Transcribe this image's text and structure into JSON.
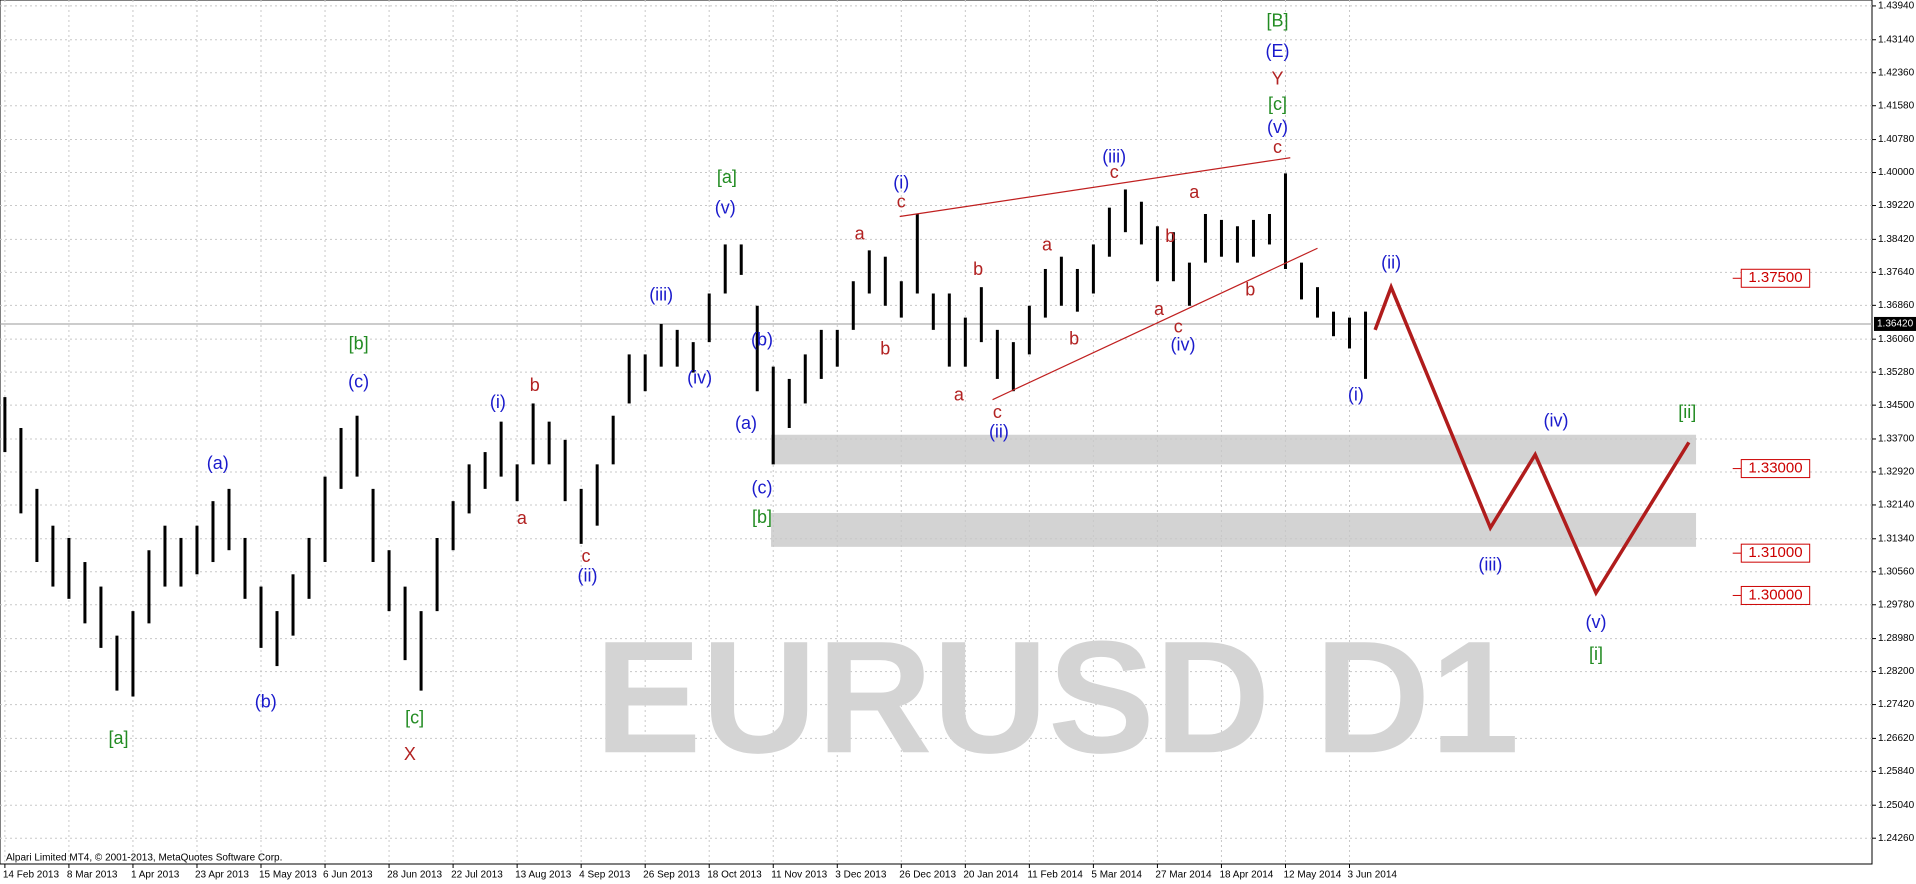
{
  "chart_data": {
    "type": "candlestick",
    "watermark": "EURUSD D1",
    "copyright": "Alpari Limited MT4, © 2001-2013, MetaQuotes Software Corp.",
    "categories": [
      "14 Feb 2013",
      "8 Mar 2013",
      "1 Apr 2013",
      "23 Apr 2013",
      "15 May 2013",
      "6 Jun 2013",
      "28 Jun 2013",
      "22 Jul 2013",
      "13 Aug 2013",
      "4 Sep 2013",
      "26 Sep 2013",
      "18 Oct 2013",
      "11 Nov 2013",
      "3 Dec 2013",
      "26 Dec 2013",
      "20 Jan 2014",
      "11 Feb 2014",
      "5 Mar 2014",
      "27 Mar 2014",
      "18 Apr 2014",
      "12 May 2014",
      "3 Jun 2014"
    ],
    "low": [
      1.3339,
      1.3194,
      1.3079,
      1.3021,
      1.2992,
      1.2934,
      1.2876,
      1.2775,
      1.2761,
      1.2934,
      1.3021,
      1.3021,
      1.305,
      1.3079,
      1.3107,
      1.2992,
      1.2876,
      1.2833,
      1.2905,
      1.2992,
      1.3079,
      1.3252,
      1.3281,
      1.3079,
      1.2963,
      1.2847,
      1.2775,
      1.2963,
      1.3107,
      1.3194,
      1.3252,
      1.3281,
      1.3223,
      1.331,
      1.331,
      1.3223,
      1.3122,
      1.3165,
      1.331,
      1.3454,
      1.3483,
      1.3541,
      1.3541,
      1.3527,
      1.3599,
      1.3714,
      1.3758,
      1.3483,
      1.331,
      1.3396,
      1.3454,
      1.3512,
      1.3541,
      1.3628,
      1.3714,
      1.3685,
      1.3657,
      1.3714,
      1.3628,
      1.3541,
      1.3541,
      1.3599,
      1.3512,
      1.3483,
      1.357,
      1.3657,
      1.3685,
      1.3671,
      1.3714,
      1.3801,
      1.3859,
      1.383,
      1.3743,
      1.3743,
      1.3685,
      1.3787,
      1.3801,
      1.3787,
      1.3801,
      1.383,
      1.3772,
      1.37,
      1.3657,
      1.3613,
      1.3584,
      1.3512
    ],
    "high": [
      1.3469,
      1.3396,
      1.3252,
      1.3165,
      1.3136,
      1.3079,
      1.3021,
      1.2905,
      1.2963,
      1.3107,
      1.3165,
      1.3136,
      1.3165,
      1.3223,
      1.3252,
      1.3136,
      1.3021,
      1.2963,
      1.305,
      1.3136,
      1.3281,
      1.3396,
      1.3425,
      1.3252,
      1.3107,
      1.3021,
      1.2963,
      1.3136,
      1.3223,
      1.331,
      1.3339,
      1.3411,
      1.331,
      1.3454,
      1.3411,
      1.3368,
      1.3252,
      1.331,
      1.3425,
      1.357,
      1.357,
      1.3642,
      1.3628,
      1.3599,
      1.3714,
      1.383,
      1.383,
      1.3685,
      1.3541,
      1.3512,
      1.357,
      1.3628,
      1.3628,
      1.3743,
      1.3816,
      1.3801,
      1.3743,
      1.3902,
      1.3714,
      1.3714,
      1.3657,
      1.3729,
      1.3628,
      1.3599,
      1.3685,
      1.3772,
      1.3801,
      1.3772,
      1.383,
      1.3917,
      1.396,
      1.3931,
      1.3873,
      1.3859,
      1.3787,
      1.3902,
      1.3888,
      1.3873,
      1.3888,
      1.3902,
      1.3998,
      1.3787,
      1.3729,
      1.3671,
      1.3657,
      1.3671
    ],
    "ylim": [
      1.2365,
      1.4408
    ],
    "yticks": [
      {
        "value": 1.4394,
        "label": "1.43940"
      },
      {
        "value": 1.4314,
        "label": "1.43140"
      },
      {
        "value": 1.4236,
        "label": "1.42360"
      },
      {
        "value": 1.4158,
        "label": "1.41580"
      },
      {
        "value": 1.4078,
        "label": "1.40780"
      },
      {
        "value": 1.4,
        "label": "1.40000"
      },
      {
        "value": 1.3922,
        "label": "1.39220"
      },
      {
        "value": 1.3842,
        "label": "1.38420"
      },
      {
        "value": 1.3764,
        "label": "1.37640"
      },
      {
        "value": 1.3686,
        "label": "1.36860"
      },
      {
        "value": 1.3606,
        "label": "1.36060"
      },
      {
        "value": 1.3528,
        "label": "1.35280"
      },
      {
        "value": 1.345,
        "label": "1.34500"
      },
      {
        "value": 1.337,
        "label": "1.33700"
      },
      {
        "value": 1.3292,
        "label": "1.32920"
      },
      {
        "value": 1.3214,
        "label": "1.32140"
      },
      {
        "value": 1.3134,
        "label": "1.31340"
      },
      {
        "value": 1.3056,
        "label": "1.30560"
      },
      {
        "value": 1.2978,
        "label": "1.29780"
      },
      {
        "value": 1.2898,
        "label": "1.28980"
      },
      {
        "value": 1.282,
        "label": "1.28200"
      },
      {
        "value": 1.2742,
        "label": "1.27420"
      },
      {
        "value": 1.2662,
        "label": "1.26620"
      },
      {
        "value": 1.2584,
        "label": "1.25840"
      },
      {
        "value": 1.2504,
        "label": "1.25040"
      },
      {
        "value": 1.2426,
        "label": "1.24260"
      }
    ],
    "grid": true,
    "current_price": {
      "value": 1.3642,
      "label": "1.36420"
    },
    "levels": [
      {
        "value": 1.375,
        "label": "1.37500"
      },
      {
        "value": 1.33,
        "label": "1.33000"
      },
      {
        "value": 1.31,
        "label": "1.31000"
      },
      {
        "value": 1.3,
        "label": "1.30000"
      }
    ],
    "zones": [
      [
        1.331,
        1.338
      ],
      [
        1.3115,
        1.3195
      ]
    ],
    "projection": {
      "color": "#b01c1c",
      "x": [
        85.6,
        86.6,
        92.8,
        95.6,
        99.4,
        105.2
      ],
      "values": [
        1.3628,
        1.3729,
        1.316,
        1.3333,
        1.3006,
        1.3362
      ]
    },
    "trendlines": [
      {
        "x": [
          55.9,
          80.3
        ],
        "values": [
          1.3896,
          1.4035
        ]
      },
      {
        "x": [
          61.7,
          82.0
        ],
        "values": [
          1.3463,
          1.3821
        ]
      }
    ],
    "annotations": [
      {
        "text": "[a]",
        "x": 7.1,
        "y": 1.266,
        "color": "#228b22"
      },
      {
        "text": "(a)",
        "x": 13.3,
        "y": 1.331,
        "color": "#1a1acc"
      },
      {
        "text": "(b)",
        "x": 16.3,
        "y": 1.2746,
        "color": "#1a1acc"
      },
      {
        "text": "[b]",
        "x": 22.1,
        "y": 1.3593,
        "color": "#228b22"
      },
      {
        "text": "(c)",
        "x": 22.1,
        "y": 1.3503,
        "color": "#1a1acc"
      },
      {
        "text": "[c]",
        "x": 25.6,
        "y": 1.2709,
        "color": "#228b22"
      },
      {
        "text": "X",
        "x": 25.3,
        "y": 1.2622,
        "color": "#b22222"
      },
      {
        "text": "(i)",
        "x": 30.8,
        "y": 1.3454,
        "color": "#1a1acc"
      },
      {
        "text": "b",
        "x": 33.1,
        "y": 1.3495,
        "color": "#b22222"
      },
      {
        "text": "a",
        "x": 32.3,
        "y": 1.318,
        "color": "#b22222"
      },
      {
        "text": "c",
        "x": 36.3,
        "y": 1.309,
        "color": "#b22222"
      },
      {
        "text": "(ii)",
        "x": 36.4,
        "y": 1.3044,
        "color": "#1a1acc"
      },
      {
        "text": "(iii)",
        "x": 41.0,
        "y": 1.3709,
        "color": "#1a1acc"
      },
      {
        "text": "(iv)",
        "x": 43.4,
        "y": 1.3512,
        "color": "#1a1acc"
      },
      {
        "text": "(v)",
        "x": 45.0,
        "y": 1.3914,
        "color": "#1a1acc"
      },
      {
        "text": "[a]",
        "x": 45.1,
        "y": 1.3986,
        "color": "#228b22"
      },
      {
        "text": "(b)",
        "x": 47.3,
        "y": 1.3602,
        "color": "#1a1acc"
      },
      {
        "text": "(a)",
        "x": 46.3,
        "y": 1.3405,
        "color": "#1a1acc"
      },
      {
        "text": "(c)",
        "x": 47.3,
        "y": 1.3252,
        "color": "#1a1acc"
      },
      {
        "text": "[b]",
        "x": 47.3,
        "y": 1.3183,
        "color": "#228b22"
      },
      {
        "text": "(i)",
        "x": 56.0,
        "y": 1.3974,
        "color": "#1a1acc"
      },
      {
        "text": "c",
        "x": 56.0,
        "y": 1.3928,
        "color": "#b22222"
      },
      {
        "text": "a",
        "x": 53.4,
        "y": 1.3853,
        "color": "#b22222"
      },
      {
        "text": "b",
        "x": 55.0,
        "y": 1.3581,
        "color": "#b22222"
      },
      {
        "text": "b",
        "x": 60.8,
        "y": 1.3769,
        "color": "#b22222"
      },
      {
        "text": "a",
        "x": 59.6,
        "y": 1.3472,
        "color": "#b22222"
      },
      {
        "text": "c",
        "x": 62.0,
        "y": 1.3431,
        "color": "#b22222"
      },
      {
        "text": "(ii)",
        "x": 62.1,
        "y": 1.3385,
        "color": "#1a1acc"
      },
      {
        "text": "a",
        "x": 65.1,
        "y": 1.3827,
        "color": "#b22222"
      },
      {
        "text": "b",
        "x": 66.8,
        "y": 1.3605,
        "color": "#b22222"
      },
      {
        "text": "(iii)",
        "x": 69.3,
        "y": 1.4035,
        "color": "#1a1acc"
      },
      {
        "text": "c",
        "x": 69.3,
        "y": 1.3998,
        "color": "#b22222"
      },
      {
        "text": "b",
        "x": 72.8,
        "y": 1.3847,
        "color": "#b22222"
      },
      {
        "text": "a",
        "x": 74.3,
        "y": 1.3951,
        "color": "#b22222"
      },
      {
        "text": "a",
        "x": 72.1,
        "y": 1.3674,
        "color": "#b22222"
      },
      {
        "text": "c",
        "x": 73.3,
        "y": 1.3633,
        "color": "#b22222"
      },
      {
        "text": "(iv)",
        "x": 73.6,
        "y": 1.359,
        "color": "#1a1acc"
      },
      {
        "text": "b",
        "x": 77.8,
        "y": 1.372,
        "color": "#b22222"
      },
      {
        "text": "[B]",
        "x": 79.5,
        "y": 1.4356,
        "color": "#228b22"
      },
      {
        "text": "(E)",
        "x": 79.5,
        "y": 1.4284,
        "color": "#1a1acc"
      },
      {
        "text": "Y",
        "x": 79.5,
        "y": 1.422,
        "color": "#b22222"
      },
      {
        "text": "[c]",
        "x": 79.5,
        "y": 1.4159,
        "color": "#228b22"
      },
      {
        "text": "(v)",
        "x": 79.5,
        "y": 1.4105,
        "color": "#1a1acc"
      },
      {
        "text": "c",
        "x": 79.5,
        "y": 1.4058,
        "color": "#b22222"
      },
      {
        "text": "(i)",
        "x": 84.4,
        "y": 1.3472,
        "color": "#1a1acc"
      },
      {
        "text": "(ii)",
        "x": 86.6,
        "y": 1.3784,
        "color": "#1a1acc"
      },
      {
        "text": "(iii)",
        "x": 92.8,
        "y": 1.307,
        "color": "#1a1acc"
      },
      {
        "text": "(iv)",
        "x": 96.9,
        "y": 1.3411,
        "color": "#1a1acc"
      },
      {
        "text": "[ii]",
        "x": 105.1,
        "y": 1.3431,
        "color": "#228b22"
      },
      {
        "text": "(v)",
        "x": 99.4,
        "y": 1.2934,
        "color": "#1a1acc"
      },
      {
        "text": "[i]",
        "x": 99.4,
        "y": 1.2859,
        "color": "#228b22"
      }
    ]
  }
}
